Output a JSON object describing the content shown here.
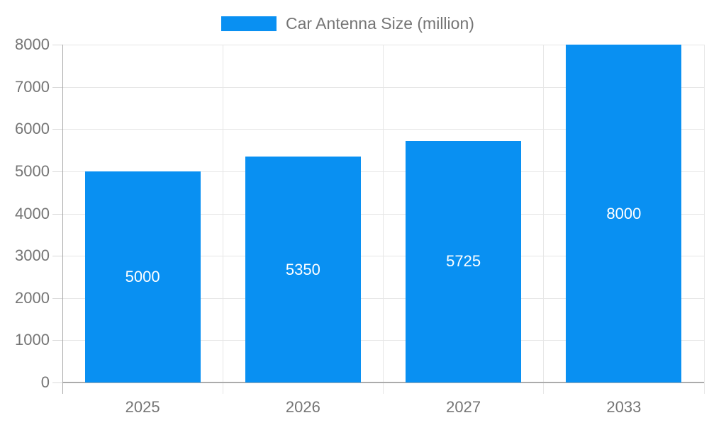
{
  "legend": {
    "label": "Car Antenna Size (million)"
  },
  "chart_data": {
    "type": "bar",
    "title": "Car Antenna Size (million)",
    "categories": [
      "2025",
      "2026",
      "2027",
      "2033"
    ],
    "values": [
      5000,
      5350,
      5725,
      8000
    ],
    "bar_labels": [
      "5000",
      "5350",
      "5725",
      "8000"
    ],
    "xlabel": "",
    "ylabel": "",
    "ylim": [
      0,
      8000
    ],
    "ytick_step": 1000,
    "ytick_labels": [
      "0",
      "1000",
      "2000",
      "3000",
      "4000",
      "5000",
      "6000",
      "7000",
      "8000"
    ],
    "legend_position": "top",
    "grid": true,
    "colors": {
      "bar": "#0990F2",
      "bar_label": "#FFFFFF",
      "axis_text": "#757575",
      "grid_line": "#E6E6E6",
      "axis_line": "#ABABAB",
      "background": "#FFFFFF"
    }
  }
}
